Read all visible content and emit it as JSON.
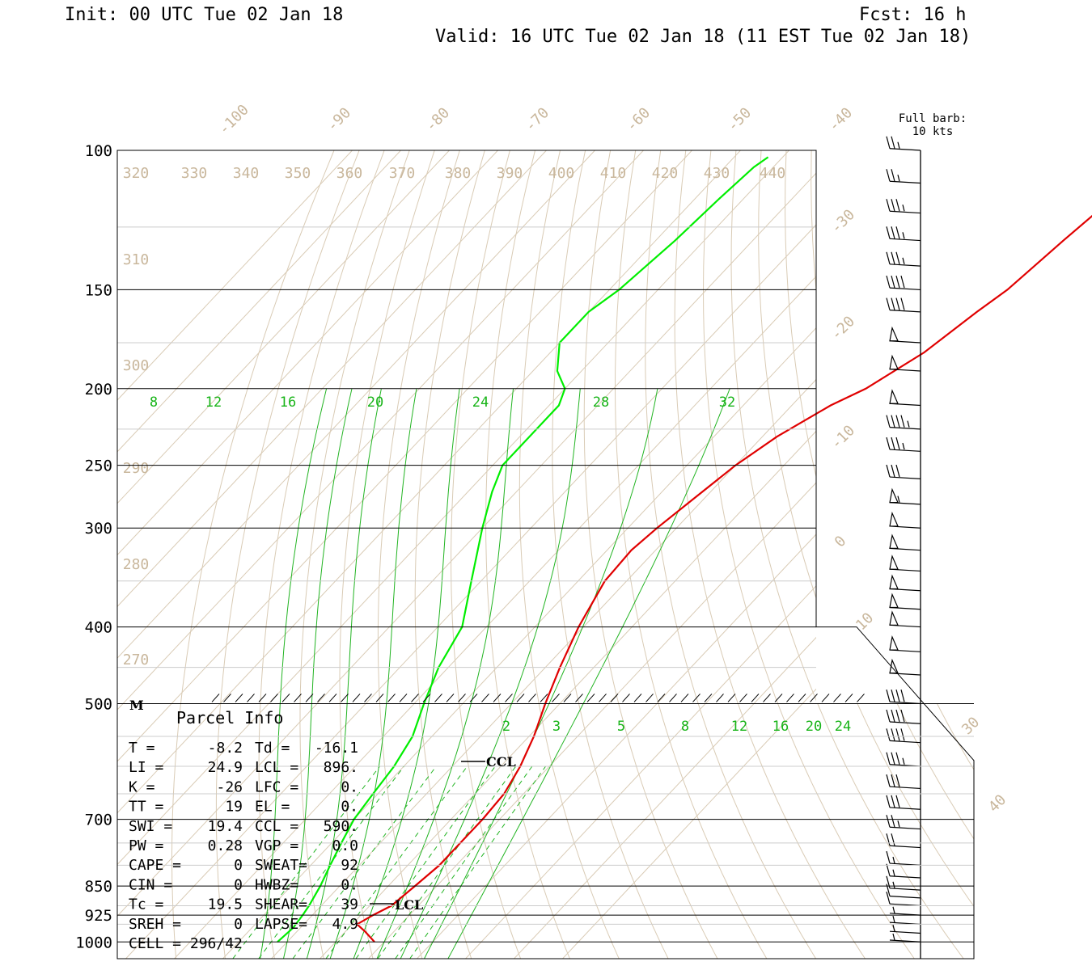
{
  "header": {
    "init": "Init: 00 UTC Tue 02 Jan 18",
    "fcst": "Fcst:   16 h",
    "valid": "Valid: 16 UTC Tue 02 Jan 18 (11 EST Tue 02 Jan 18)"
  },
  "barb_legend": {
    "line1": "Full barb:",
    "line2": "10 kts"
  },
  "chart_data": {
    "type": "line",
    "title": "",
    "yaxis": {
      "label": "",
      "scale": "log",
      "ticks": [
        100,
        150,
        200,
        250,
        300,
        400,
        500,
        700,
        850,
        925,
        1000
      ],
      "range": [
        1000,
        100
      ]
    },
    "isotherm_labels": [
      -100,
      -90,
      -80,
      -70,
      -60,
      -50,
      -40,
      -30,
      -20,
      -10,
      0,
      10,
      30,
      40
    ],
    "theta_labels": [
      320,
      330,
      340,
      350,
      360,
      370,
      380,
      390,
      400,
      410,
      420,
      430,
      440,
      310,
      300,
      290,
      280,
      270
    ],
    "mixing_ratio_upper": [
      8,
      12,
      16,
      20,
      24,
      28,
      32
    ],
    "mixing_ratio_lower": [
      2,
      3,
      5,
      8,
      12,
      16,
      20,
      24
    ],
    "series": [
      {
        "name": "",
        "color": "#e00000",
        "points": [
          [
            1000,
            18
          ],
          [
            970,
            14
          ],
          [
            950,
            11
          ],
          [
            925,
            12.5
          ],
          [
            900,
            14.5
          ],
          [
            850,
            15.5
          ],
          [
            800,
            16.5
          ],
          [
            750,
            16.5
          ],
          [
            700,
            16.5
          ],
          [
            650,
            16
          ],
          [
            600,
            14
          ],
          [
            550,
            11
          ],
          [
            500,
            7
          ],
          [
            450,
            3
          ],
          [
            400,
            -1
          ],
          [
            350,
            -4.5
          ],
          [
            320,
            -5
          ],
          [
            300,
            -4
          ],
          [
            280,
            -2.5
          ],
          [
            250,
            0
          ],
          [
            230,
            3
          ],
          [
            210,
            8
          ],
          [
            200,
            12
          ],
          [
            180,
            17
          ],
          [
            160,
            20
          ],
          [
            150,
            22
          ],
          [
            130,
            24
          ],
          [
            115,
            26
          ],
          [
            105,
            27
          ],
          [
            102,
            28
          ]
        ]
      },
      {
        "name": "",
        "color": "#00ee00",
        "points": [
          [
            1000,
            -2
          ],
          [
            960,
            -1.5
          ],
          [
            925,
            -2
          ],
          [
            900,
            -2.5
          ],
          [
            850,
            -4
          ],
          [
            800,
            -6
          ],
          [
            750,
            -8
          ],
          [
            700,
            -10
          ],
          [
            650,
            -11
          ],
          [
            600,
            -12
          ],
          [
            550,
            -14
          ],
          [
            500,
            -18
          ],
          [
            450,
            -22
          ],
          [
            400,
            -25
          ],
          [
            350,
            -32
          ],
          [
            300,
            -40
          ],
          [
            270,
            -45
          ],
          [
            250,
            -48
          ],
          [
            230,
            -48
          ],
          [
            210,
            -48
          ],
          [
            200,
            -50
          ],
          [
            190,
            -55
          ],
          [
            175,
            -60
          ],
          [
            160,
            -60
          ],
          [
            150,
            -58
          ],
          [
            130,
            -56
          ],
          [
            115,
            -55
          ],
          [
            105,
            -54
          ],
          [
            102,
            -53
          ]
        ]
      }
    ],
    "wind_kts": [
      [
        100,
        25
      ],
      [
        110,
        25
      ],
      [
        120,
        35
      ],
      [
        130,
        35
      ],
      [
        140,
        35
      ],
      [
        150,
        40
      ],
      [
        160,
        40
      ],
      [
        175,
        50
      ],
      [
        190,
        50
      ],
      [
        210,
        50
      ],
      [
        225,
        45
      ],
      [
        240,
        35
      ],
      [
        260,
        30
      ],
      [
        280,
        55
      ],
      [
        300,
        50
      ],
      [
        320,
        50
      ],
      [
        340,
        50
      ],
      [
        360,
        50
      ],
      [
        380,
        50
      ],
      [
        400,
        50
      ],
      [
        430,
        50
      ],
      [
        460,
        50
      ],
      [
        500,
        40
      ],
      [
        530,
        40
      ],
      [
        560,
        40
      ],
      [
        600,
        35
      ],
      [
        640,
        30
      ],
      [
        680,
        30
      ],
      [
        720,
        25
      ],
      [
        760,
        20
      ],
      [
        800,
        15
      ],
      [
        830,
        15
      ],
      [
        860,
        15
      ],
      [
        880,
        10
      ],
      [
        900,
        10
      ],
      [
        925,
        5
      ],
      [
        950,
        5
      ],
      [
        975,
        5
      ],
      [
        1000,
        5
      ]
    ]
  },
  "labels": {
    "ccl": "CCL",
    "lcl": "LCL",
    "marker_m": "M"
  },
  "parcel_info": {
    "title": "Parcel Info",
    "rows": [
      [
        "T  =",
        "-8.2",
        "Td =",
        "-16.1"
      ],
      [
        "LI =",
        "24.9",
        "LCL =",
        "896."
      ],
      [
        "K  =",
        "-26",
        "LFC =",
        "0."
      ],
      [
        "TT =",
        "19",
        "EL  =",
        "0."
      ],
      [
        "SWI =",
        "19.4",
        "CCL =",
        "590."
      ],
      [
        "PW =",
        "0.28",
        "VGP =",
        "0.0"
      ],
      [
        "CAPE =",
        "0",
        "SWEAT=",
        "92"
      ],
      [
        "CIN =",
        "0",
        "HWBZ=",
        "0."
      ],
      [
        "Tc =",
        "19.5",
        "SHEAR=",
        "39"
      ],
      [
        "SREH =",
        "0",
        "LAPSE=",
        "4.9"
      ]
    ],
    "cell": "CELL = 296/42"
  }
}
